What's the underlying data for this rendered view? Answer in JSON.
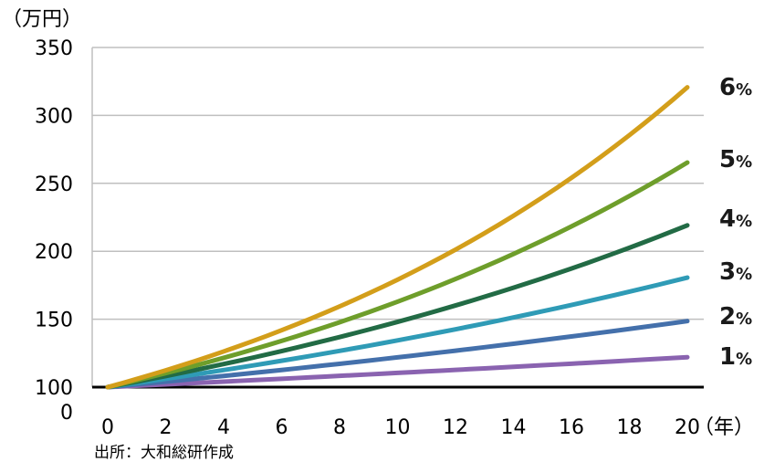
{
  "chart_data": {
    "type": "line",
    "y_unit_label": "（万円）",
    "x_unit_label": "（年）",
    "x_ticks": [
      0,
      2,
      4,
      6,
      8,
      10,
      12,
      14,
      16,
      18,
      20
    ],
    "y_ticks": [
      "350",
      "300",
      "250",
      "200",
      "150",
      "100"
    ],
    "y_zero_label": "0",
    "ylim": [
      100,
      350
    ],
    "xlim": [
      0,
      20
    ],
    "grid": true,
    "baseline_value": 100,
    "principal": 100,
    "years": 20,
    "series": [
      {
        "name": "1",
        "rate": 0.01,
        "color": "#8a63b0",
        "start": 100,
        "end": 122
      },
      {
        "name": "2",
        "rate": 0.02,
        "color": "#4470ab",
        "start": 100,
        "end": 149
      },
      {
        "name": "3",
        "rate": 0.03,
        "color": "#2f9bb6",
        "start": 100,
        "end": 181
      },
      {
        "name": "4",
        "rate": 0.04,
        "color": "#226b45",
        "start": 100,
        "end": 219
      },
      {
        "name": "5",
        "rate": 0.05,
        "color": "#6e9e2b",
        "start": 100,
        "end": 265
      },
      {
        "name": "6",
        "rate": 0.06,
        "color": "#d39e1a",
        "start": 100,
        "end": 321
      }
    ],
    "label_suffix": "%",
    "label_color": "#1a1a1a"
  },
  "source_note": "出所：大和総研作成"
}
